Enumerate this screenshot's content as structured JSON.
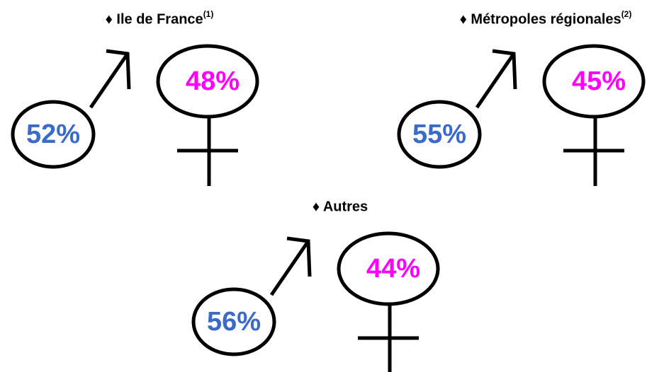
{
  "groups": [
    {
      "title": "♦ Ile de France",
      "note": "(1)",
      "male": "52%",
      "female": "48%"
    },
    {
      "title": "♦ Métropoles régionales",
      "note": "(2)",
      "male": "55%",
      "female": "45%"
    },
    {
      "title": "♦ Autres",
      "male": "56%",
      "female": "44%"
    }
  ]
}
